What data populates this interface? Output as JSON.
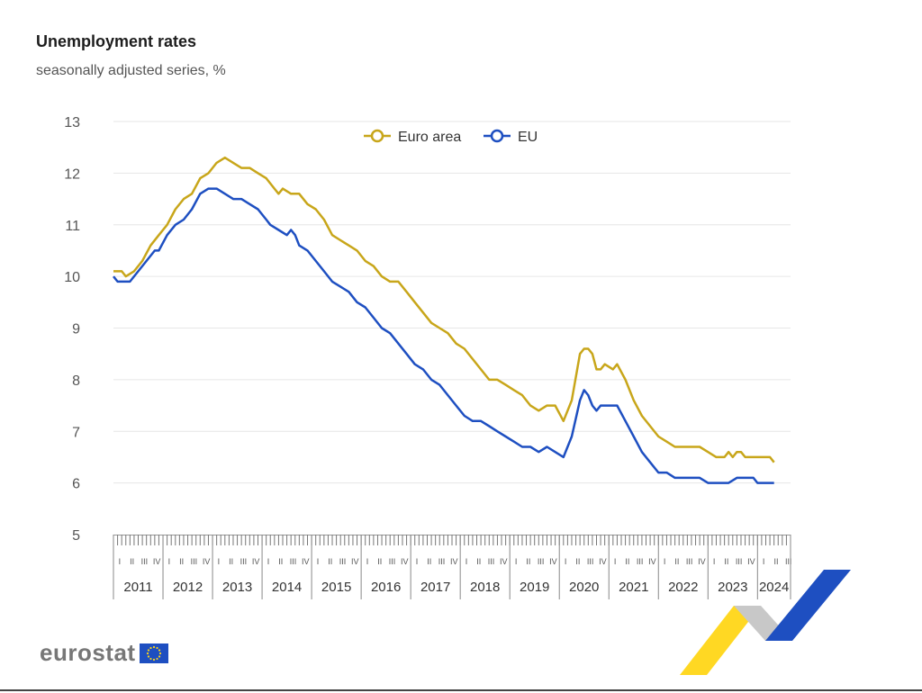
{
  "chart_data": {
    "type": "line",
    "title": "Unemployment rates",
    "subtitle": "seasonally adjusted series, %",
    "ylim": [
      5,
      13
    ],
    "y_ticks": [
      5,
      6,
      7,
      8,
      9,
      10,
      11,
      12,
      13
    ],
    "grid": true,
    "legend_position": "top-center",
    "x_range": [
      "2011-01",
      "2024-05"
    ],
    "years": [
      "2011",
      "2012",
      "2013",
      "2014",
      "2015",
      "2016",
      "2017",
      "2018",
      "2019",
      "2020",
      "2021",
      "2022",
      "2023",
      "2024"
    ],
    "quarter_labels": [
      "I",
      "II",
      "III",
      "IV"
    ],
    "series": [
      {
        "name": "Euro area",
        "color": "#c8a61a",
        "points": [
          [
            "2011-01",
            10.1
          ],
          [
            "2011-03",
            10.1
          ],
          [
            "2011-04",
            10.0
          ],
          [
            "2011-06",
            10.1
          ],
          [
            "2011-08",
            10.3
          ],
          [
            "2011-10",
            10.6
          ],
          [
            "2011-12",
            10.8
          ],
          [
            "2012-02",
            11.0
          ],
          [
            "2012-04",
            11.3
          ],
          [
            "2012-06",
            11.5
          ],
          [
            "2012-08",
            11.6
          ],
          [
            "2012-10",
            11.9
          ],
          [
            "2012-12",
            12.0
          ],
          [
            "2013-02",
            12.2
          ],
          [
            "2013-04",
            12.3
          ],
          [
            "2013-06",
            12.2
          ],
          [
            "2013-08",
            12.1
          ],
          [
            "2013-10",
            12.1
          ],
          [
            "2013-12",
            12.0
          ],
          [
            "2014-02",
            11.9
          ],
          [
            "2014-04",
            11.7
          ],
          [
            "2014-05",
            11.6
          ],
          [
            "2014-06",
            11.7
          ],
          [
            "2014-08",
            11.6
          ],
          [
            "2014-10",
            11.6
          ],
          [
            "2014-12",
            11.4
          ],
          [
            "2015-02",
            11.3
          ],
          [
            "2015-04",
            11.1
          ],
          [
            "2015-06",
            10.8
          ],
          [
            "2015-08",
            10.7
          ],
          [
            "2015-10",
            10.6
          ],
          [
            "2015-12",
            10.5
          ],
          [
            "2016-02",
            10.3
          ],
          [
            "2016-04",
            10.2
          ],
          [
            "2016-06",
            10.0
          ],
          [
            "2016-08",
            9.9
          ],
          [
            "2016-10",
            9.9
          ],
          [
            "2016-12",
            9.7
          ],
          [
            "2017-02",
            9.5
          ],
          [
            "2017-04",
            9.3
          ],
          [
            "2017-06",
            9.1
          ],
          [
            "2017-08",
            9.0
          ],
          [
            "2017-10",
            8.9
          ],
          [
            "2017-12",
            8.7
          ],
          [
            "2018-02",
            8.6
          ],
          [
            "2018-04",
            8.4
          ],
          [
            "2018-06",
            8.2
          ],
          [
            "2018-08",
            8.0
          ],
          [
            "2018-10",
            8.0
          ],
          [
            "2018-12",
            7.9
          ],
          [
            "2019-02",
            7.8
          ],
          [
            "2019-04",
            7.7
          ],
          [
            "2019-06",
            7.5
          ],
          [
            "2019-08",
            7.4
          ],
          [
            "2019-10",
            7.5
          ],
          [
            "2019-12",
            7.5
          ],
          [
            "2020-02",
            7.2
          ],
          [
            "2020-04",
            7.6
          ],
          [
            "2020-06",
            8.5
          ],
          [
            "2020-07",
            8.6
          ],
          [
            "2020-08",
            8.6
          ],
          [
            "2020-09",
            8.5
          ],
          [
            "2020-10",
            8.2
          ],
          [
            "2020-11",
            8.2
          ],
          [
            "2020-12",
            8.3
          ],
          [
            "2021-02",
            8.2
          ],
          [
            "2021-03",
            8.3
          ],
          [
            "2021-05",
            8.0
          ],
          [
            "2021-07",
            7.6
          ],
          [
            "2021-09",
            7.3
          ],
          [
            "2021-11",
            7.1
          ],
          [
            "2022-01",
            6.9
          ],
          [
            "2022-03",
            6.8
          ],
          [
            "2022-05",
            6.7
          ],
          [
            "2022-07",
            6.7
          ],
          [
            "2022-09",
            6.7
          ],
          [
            "2022-11",
            6.7
          ],
          [
            "2023-01",
            6.6
          ],
          [
            "2023-03",
            6.5
          ],
          [
            "2023-05",
            6.5
          ],
          [
            "2023-06",
            6.6
          ],
          [
            "2023-07",
            6.5
          ],
          [
            "2023-08",
            6.6
          ],
          [
            "2023-09",
            6.6
          ],
          [
            "2023-10",
            6.5
          ],
          [
            "2023-12",
            6.5
          ],
          [
            "2024-02",
            6.5
          ],
          [
            "2024-04",
            6.5
          ],
          [
            "2024-05",
            6.4
          ]
        ]
      },
      {
        "name": "EU",
        "color": "#1e4fc1",
        "points": [
          [
            "2011-01",
            10.0
          ],
          [
            "2011-02",
            9.9
          ],
          [
            "2011-05",
            9.9
          ],
          [
            "2011-07",
            10.1
          ],
          [
            "2011-09",
            10.3
          ],
          [
            "2011-11",
            10.5
          ],
          [
            "2011-12",
            10.5
          ],
          [
            "2012-02",
            10.8
          ],
          [
            "2012-04",
            11.0
          ],
          [
            "2012-06",
            11.1
          ],
          [
            "2012-08",
            11.3
          ],
          [
            "2012-10",
            11.6
          ],
          [
            "2012-12",
            11.7
          ],
          [
            "2013-02",
            11.7
          ],
          [
            "2013-04",
            11.6
          ],
          [
            "2013-06",
            11.5
          ],
          [
            "2013-08",
            11.5
          ],
          [
            "2013-10",
            11.4
          ],
          [
            "2013-12",
            11.3
          ],
          [
            "2014-02",
            11.1
          ],
          [
            "2014-03",
            11.0
          ],
          [
            "2014-05",
            10.9
          ],
          [
            "2014-07",
            10.8
          ],
          [
            "2014-08",
            10.9
          ],
          [
            "2014-09",
            10.8
          ],
          [
            "2014-10",
            10.6
          ],
          [
            "2014-12",
            10.5
          ],
          [
            "2015-02",
            10.3
          ],
          [
            "2015-04",
            10.1
          ],
          [
            "2015-06",
            9.9
          ],
          [
            "2015-08",
            9.8
          ],
          [
            "2015-10",
            9.7
          ],
          [
            "2015-12",
            9.5
          ],
          [
            "2016-02",
            9.4
          ],
          [
            "2016-04",
            9.2
          ],
          [
            "2016-06",
            9.0
          ],
          [
            "2016-08",
            8.9
          ],
          [
            "2016-10",
            8.7
          ],
          [
            "2016-12",
            8.5
          ],
          [
            "2017-02",
            8.3
          ],
          [
            "2017-04",
            8.2
          ],
          [
            "2017-06",
            8.0
          ],
          [
            "2017-08",
            7.9
          ],
          [
            "2017-10",
            7.7
          ],
          [
            "2017-12",
            7.5
          ],
          [
            "2018-02",
            7.3
          ],
          [
            "2018-04",
            7.2
          ],
          [
            "2018-06",
            7.2
          ],
          [
            "2018-08",
            7.1
          ],
          [
            "2018-10",
            7.0
          ],
          [
            "2018-12",
            6.9
          ],
          [
            "2019-02",
            6.8
          ],
          [
            "2019-04",
            6.7
          ],
          [
            "2019-06",
            6.7
          ],
          [
            "2019-08",
            6.6
          ],
          [
            "2019-10",
            6.7
          ],
          [
            "2019-12",
            6.6
          ],
          [
            "2020-02",
            6.5
          ],
          [
            "2020-04",
            6.9
          ],
          [
            "2020-06",
            7.6
          ],
          [
            "2020-07",
            7.8
          ],
          [
            "2020-08",
            7.7
          ],
          [
            "2020-09",
            7.5
          ],
          [
            "2020-10",
            7.4
          ],
          [
            "2020-11",
            7.5
          ],
          [
            "2020-12",
            7.5
          ],
          [
            "2021-02",
            7.5
          ],
          [
            "2021-03",
            7.5
          ],
          [
            "2021-05",
            7.2
          ],
          [
            "2021-07",
            6.9
          ],
          [
            "2021-09",
            6.6
          ],
          [
            "2021-11",
            6.4
          ],
          [
            "2022-01",
            6.2
          ],
          [
            "2022-03",
            6.2
          ],
          [
            "2022-05",
            6.1
          ],
          [
            "2022-07",
            6.1
          ],
          [
            "2022-09",
            6.1
          ],
          [
            "2022-11",
            6.1
          ],
          [
            "2023-01",
            6.0
          ],
          [
            "2023-03",
            6.0
          ],
          [
            "2023-06",
            6.0
          ],
          [
            "2023-08",
            6.1
          ],
          [
            "2023-10",
            6.1
          ],
          [
            "2023-12",
            6.1
          ],
          [
            "2024-01",
            6.0
          ],
          [
            "2024-03",
            6.0
          ],
          [
            "2024-05",
            6.0
          ]
        ]
      }
    ]
  },
  "brand": {
    "logo_text": "eurostat",
    "flag_color": "#1e4fc1",
    "star_color": "#ffd617",
    "ribbon_colors": [
      "#ffd617",
      "#bfbfbf",
      "#1e4fc1"
    ]
  }
}
